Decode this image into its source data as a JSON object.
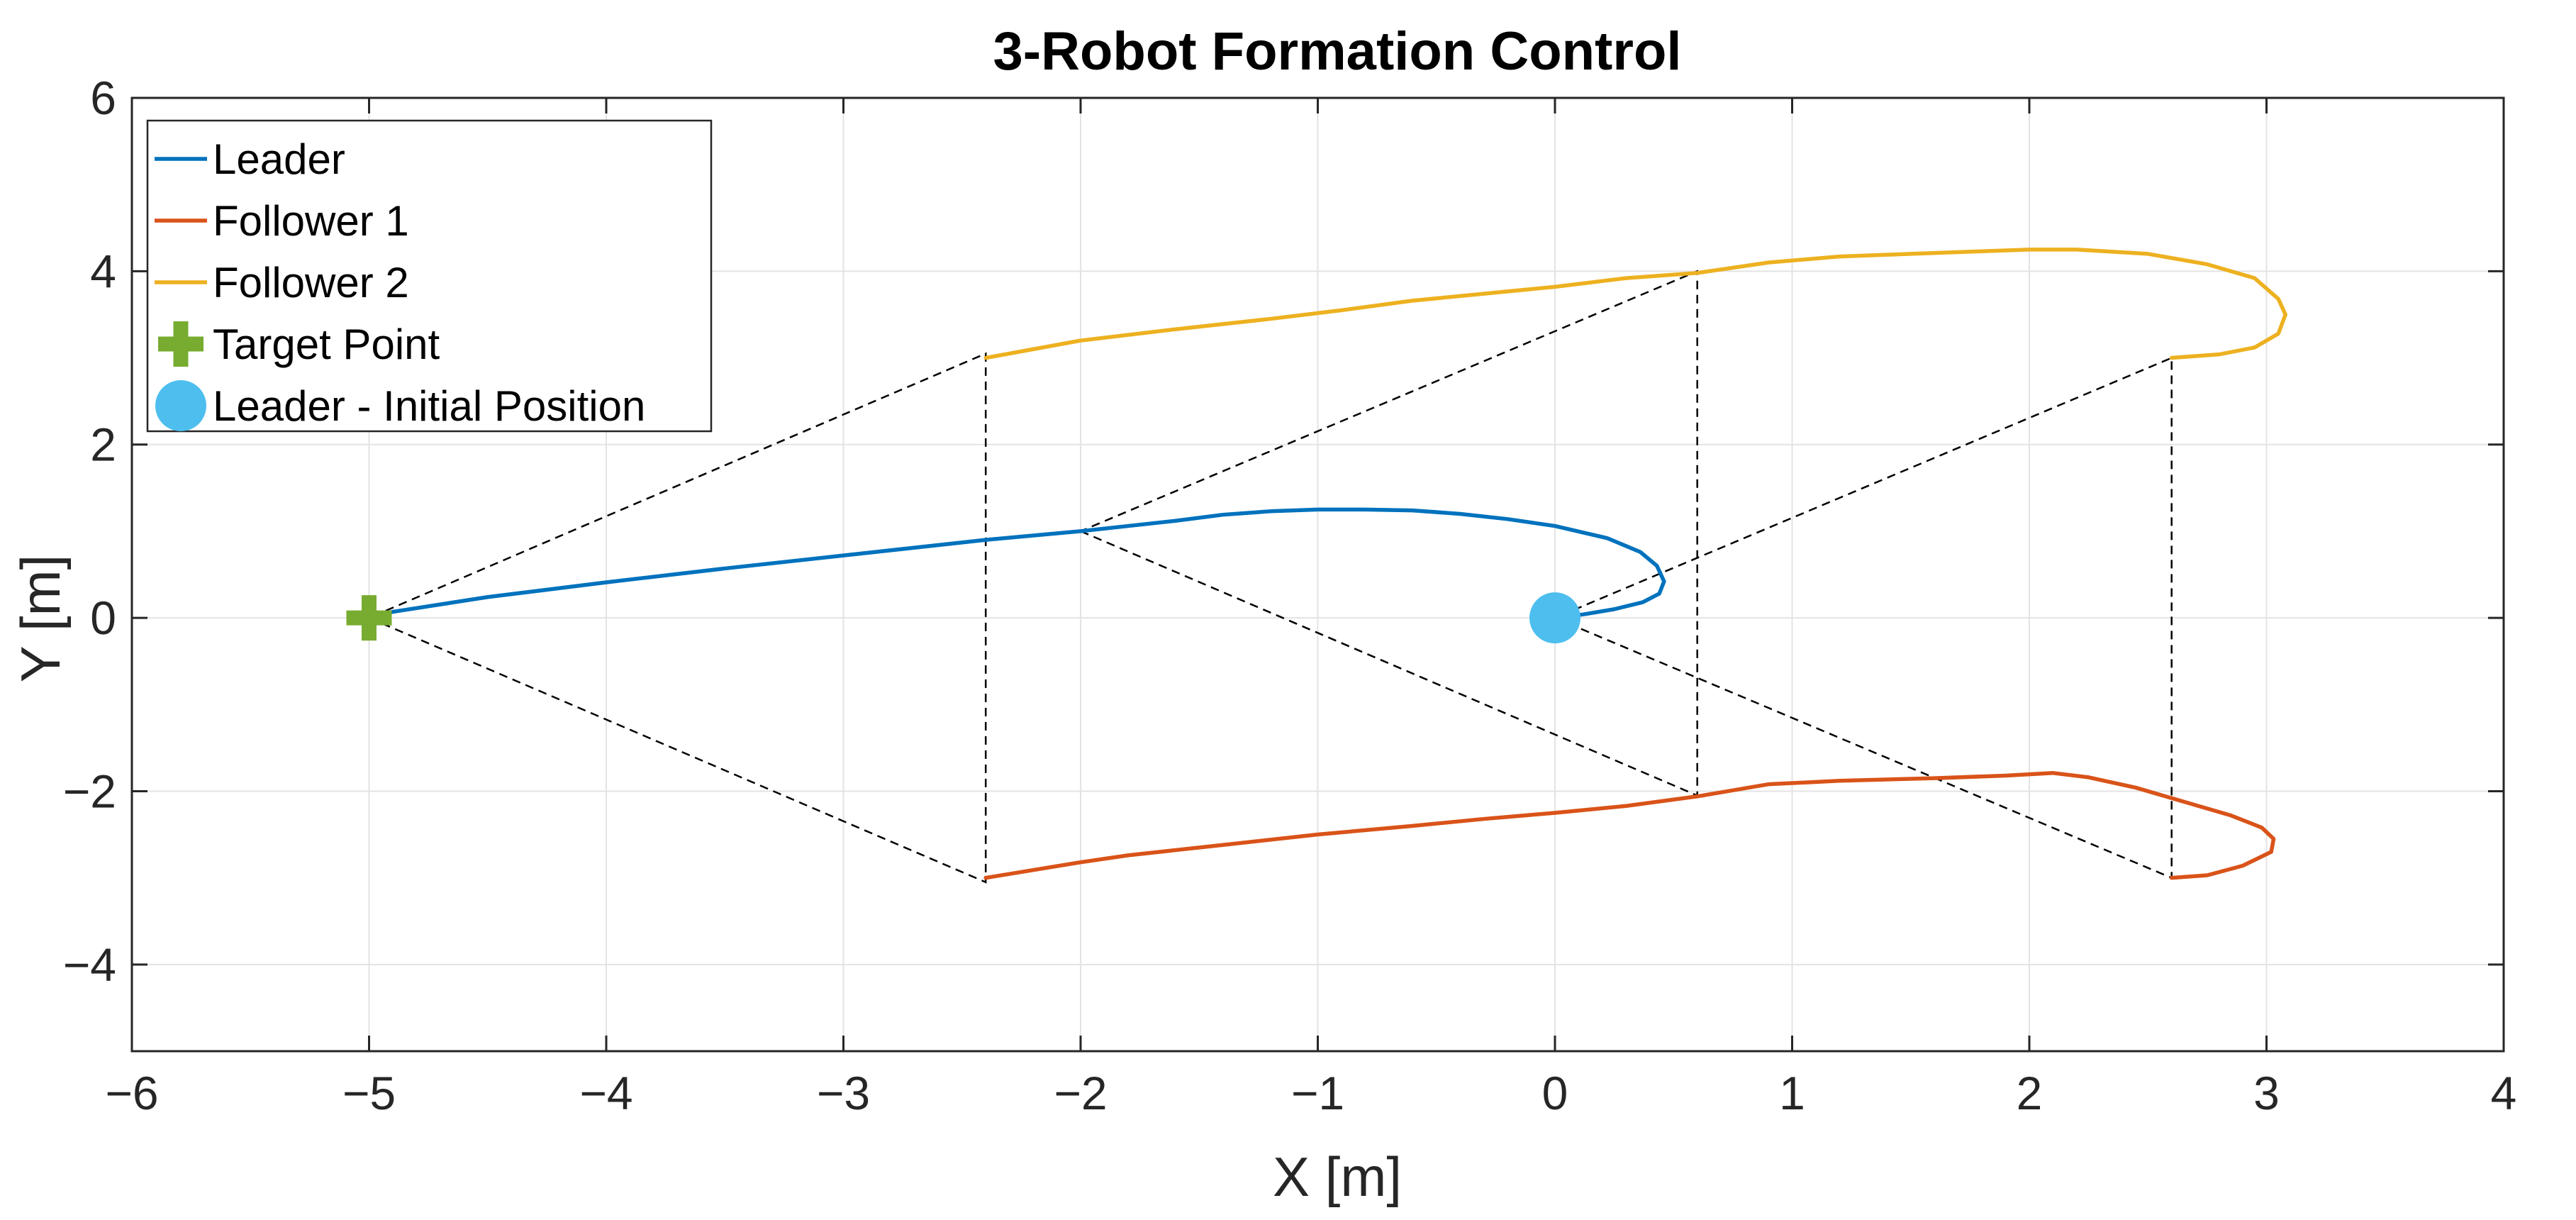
{
  "chart_data": {
    "type": "line",
    "title": "3-Robot Formation Control",
    "xlabel": "X [m]",
    "ylabel": "Y [m]",
    "xlim": [
      -6,
      4
    ],
    "ylim": [
      -5,
      6
    ],
    "xticks": [
      -6,
      -5,
      -4,
      -3,
      -2,
      -1,
      0,
      1,
      2,
      3,
      4
    ],
    "yticks": [
      -4,
      -2,
      0,
      2,
      4,
      6
    ],
    "xtick_labels": [
      "−6",
      "−5",
      "−4",
      "−3",
      "−2",
      "−1",
      "0",
      "1",
      "2",
      "3",
      "4"
    ],
    "ytick_labels": [
      "−4",
      "−2",
      "0",
      "2",
      "4",
      "6"
    ],
    "grid": true,
    "legend_position": "top-left",
    "series": [
      {
        "name": "Leader",
        "color": "#0072BD",
        "x": [
          0.0,
          0.12,
          0.25,
          0.37,
          0.44,
          0.46,
          0.43,
          0.36,
          0.22,
          0.0,
          -0.2,
          -0.4,
          -0.6,
          -0.8,
          -1.0,
          -1.2,
          -1.4,
          -1.6,
          -1.8,
          -2.0,
          -2.4,
          -3.0,
          -3.5,
          -4.0,
          -4.5,
          -4.9,
          -5.0
        ],
        "y": [
          0.0,
          0.04,
          0.1,
          0.18,
          0.28,
          0.42,
          0.6,
          0.76,
          0.92,
          1.06,
          1.14,
          1.2,
          1.24,
          1.25,
          1.25,
          1.23,
          1.19,
          1.12,
          1.06,
          1.0,
          0.9,
          0.72,
          0.57,
          0.41,
          0.24,
          0.07,
          0.0
        ]
      },
      {
        "name": "Follower 1",
        "color": "#D95319",
        "x": [
          2.6,
          2.75,
          2.9,
          3.02,
          3.03,
          2.98,
          2.85,
          2.65,
          2.45,
          2.25,
          2.1,
          1.9,
          1.6,
          1.2,
          0.9,
          0.6,
          0.3,
          0.0,
          -0.3,
          -0.6,
          -1.0,
          -1.4,
          -1.8,
          -2.0,
          -2.4
        ],
        "y": [
          -3.0,
          -2.97,
          -2.86,
          -2.7,
          -2.55,
          -2.42,
          -2.28,
          -2.12,
          -1.96,
          -1.84,
          -1.79,
          -1.82,
          -1.85,
          -1.88,
          -1.92,
          -2.06,
          -2.17,
          -2.25,
          -2.32,
          -2.4,
          -2.5,
          -2.62,
          -2.74,
          -2.82,
          -3.0
        ]
      },
      {
        "name": "Follower 2",
        "color": "#EDB120",
        "x": [
          2.6,
          2.8,
          2.95,
          3.05,
          3.08,
          3.05,
          2.95,
          2.75,
          2.5,
          2.2,
          2.0,
          1.8,
          1.5,
          1.2,
          0.9,
          0.6,
          0.3,
          0.0,
          -0.3,
          -0.6,
          -0.9,
          -1.2,
          -1.6,
          -2.0,
          -2.4
        ],
        "y": [
          3.0,
          3.04,
          3.12,
          3.28,
          3.5,
          3.68,
          3.92,
          4.08,
          4.2,
          4.25,
          4.25,
          4.23,
          4.2,
          4.17,
          4.1,
          3.98,
          3.92,
          3.82,
          3.74,
          3.66,
          3.55,
          3.45,
          3.33,
          3.2,
          3.0
        ]
      }
    ],
    "markers": [
      {
        "name": "Target Point",
        "shape": "plus",
        "x": -5.0,
        "y": 0.0,
        "color": "#77AC30"
      },
      {
        "name": "Leader - Initial Position",
        "shape": "circle",
        "x": 0.0,
        "y": 0.0,
        "color": "#4DBEEE"
      }
    ],
    "formation_triangles": [
      {
        "leader": [
          -5.0,
          0.0
        ],
        "follower1": [
          -2.4,
          -3.05
        ],
        "follower2": [
          -2.4,
          3.05
        ]
      },
      {
        "leader": [
          -2.0,
          1.0
        ],
        "follower1": [
          0.6,
          -2.05
        ],
        "follower2": [
          0.6,
          4.0
        ]
      },
      {
        "leader": [
          0.0,
          0.0
        ],
        "follower1": [
          2.6,
          -3.0
        ],
        "follower2": [
          2.6,
          3.0
        ]
      }
    ],
    "formation_line_color": "#000000"
  }
}
